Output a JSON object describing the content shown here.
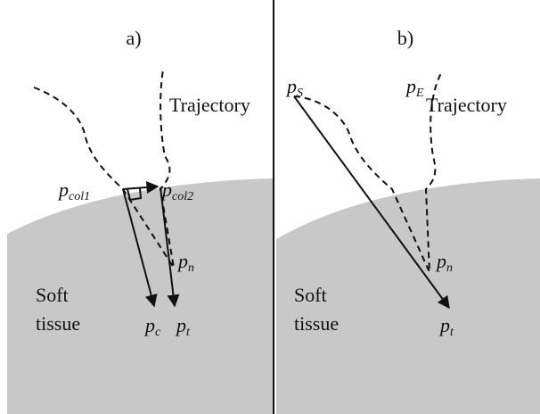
{
  "panels": [
    {
      "label": "a)",
      "trajectory_label": "Trajectory",
      "tissue_label": [
        "Soft",
        "tissue"
      ],
      "points": [
        {
          "main": "p",
          "sub": "col1"
        },
        {
          "main": "p",
          "sub": "col2"
        },
        {
          "main": "p",
          "sub": "n"
        },
        {
          "main": "p",
          "sub": "c"
        },
        {
          "main": "p",
          "sub": "t"
        }
      ]
    },
    {
      "label": "b)",
      "trajectory_label": "Trajectory",
      "tissue_label": [
        "Soft",
        "tissue"
      ],
      "points": [
        {
          "main": "p",
          "sub": "S"
        },
        {
          "main": "p",
          "sub": "E"
        },
        {
          "main": "p",
          "sub": "n"
        },
        {
          "main": "p",
          "sub": "t"
        }
      ]
    }
  ]
}
